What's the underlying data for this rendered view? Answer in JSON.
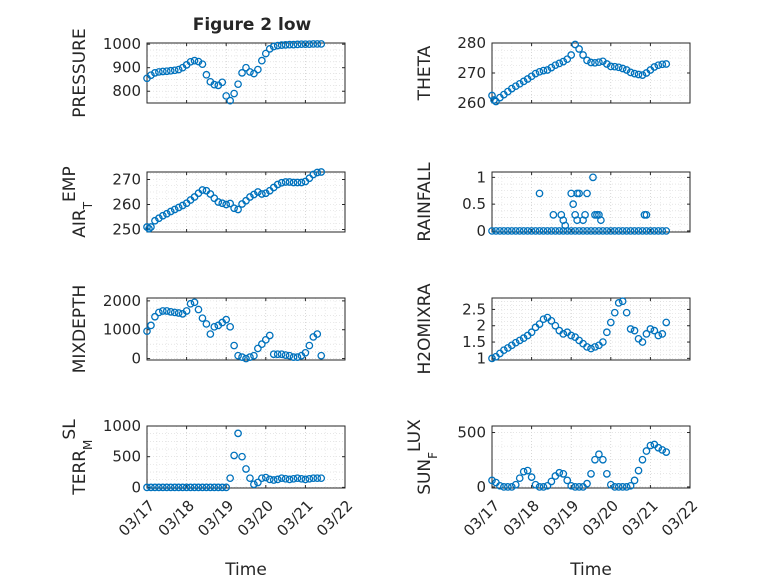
{
  "figure": {
    "title": "Figure 2 low"
  },
  "colors": {
    "marker": "#0072bd",
    "axis": "#262626",
    "grid": "#c8c8c8",
    "background": "#ffffff"
  },
  "chart_data": [
    {
      "type": "scatter",
      "title": "Figure 2 low",
      "xlabel": "",
      "ylabel": "PRESSURE",
      "ylabel_sub": "",
      "xlim": [
        0,
        5
      ],
      "ylim": [
        750,
        1005
      ],
      "yticks": [
        800,
        900,
        1000
      ],
      "ytick_labels": [
        "800",
        "900",
        "1000"
      ],
      "xticks": [],
      "grid": true,
      "x": [
        0.0,
        0.1,
        0.2,
        0.3,
        0.4,
        0.5,
        0.6,
        0.7,
        0.8,
        0.9,
        1.0,
        1.1,
        1.2,
        1.3,
        1.4,
        1.5,
        1.6,
        1.7,
        1.8,
        1.9,
        2.0,
        2.1,
        2.2,
        2.3,
        2.4,
        2.5,
        2.6,
        2.7,
        2.8,
        2.9,
        3.0,
        3.1,
        3.2,
        3.3,
        3.4,
        3.5,
        3.6,
        3.7,
        3.8,
        3.9,
        4.0,
        4.1,
        4.2,
        4.3,
        4.4
      ],
      "y": [
        855,
        868,
        878,
        882,
        884,
        885,
        887,
        889,
        892,
        900,
        912,
        925,
        930,
        926,
        915,
        870,
        840,
        828,
        825,
        838,
        780,
        760,
        790,
        830,
        878,
        900,
        882,
        875,
        892,
        930,
        960,
        980,
        990,
        994,
        996,
        997,
        998,
        998,
        999,
        1000,
        1000,
        1000,
        1001,
        1001,
        1001
      ]
    },
    {
      "type": "scatter",
      "title": "",
      "xlabel": "",
      "ylabel": "THETA",
      "ylabel_sub": "",
      "xlim": [
        0,
        5
      ],
      "ylim": [
        260,
        280
      ],
      "yticks": [
        260,
        270,
        280
      ],
      "ytick_labels": [
        "260",
        "270",
        "280"
      ],
      "xticks": [],
      "grid": true,
      "x": [
        0.0,
        0.05,
        0.1,
        0.2,
        0.3,
        0.4,
        0.5,
        0.6,
        0.7,
        0.8,
        0.9,
        1.0,
        1.1,
        1.2,
        1.3,
        1.4,
        1.5,
        1.6,
        1.7,
        1.8,
        1.9,
        2.0,
        2.1,
        2.2,
        2.3,
        2.4,
        2.5,
        2.6,
        2.7,
        2.8,
        2.9,
        3.0,
        3.1,
        3.2,
        3.3,
        3.4,
        3.5,
        3.6,
        3.7,
        3.8,
        3.9,
        4.0,
        4.1,
        4.2,
        4.3,
        4.4
      ],
      "y": [
        262.5,
        261.0,
        260.5,
        261.8,
        262.8,
        263.8,
        264.8,
        265.6,
        266.4,
        267.2,
        268.0,
        268.9,
        269.8,
        270.4,
        270.8,
        271.0,
        271.8,
        272.6,
        273.2,
        273.8,
        274.6,
        276.0,
        279.5,
        278.0,
        276.0,
        274.2,
        273.5,
        273.4,
        273.6,
        273.9,
        273.0,
        272.2,
        272.1,
        271.9,
        271.5,
        271.0,
        270.2,
        269.8,
        269.5,
        269.3,
        270.0,
        271.0,
        272.0,
        272.6,
        272.9,
        273.0
      ]
    },
    {
      "type": "scatter",
      "title": "",
      "xlabel": "",
      "ylabel": "AIR",
      "ylabel_sub": "T",
      "ylabel_tail": "EMP",
      "xlim": [
        0,
        5
      ],
      "ylim": [
        249,
        273
      ],
      "yticks": [
        250,
        260,
        270
      ],
      "ytick_labels": [
        "250",
        "260",
        "270"
      ],
      "xticks": [],
      "grid": true,
      "x": [
        0.0,
        0.05,
        0.1,
        0.2,
        0.3,
        0.4,
        0.5,
        0.6,
        0.7,
        0.8,
        0.9,
        1.0,
        1.1,
        1.2,
        1.3,
        1.4,
        1.5,
        1.6,
        1.7,
        1.8,
        1.9,
        2.0,
        2.1,
        2.2,
        2.3,
        2.4,
        2.5,
        2.6,
        2.7,
        2.8,
        2.9,
        3.0,
        3.1,
        3.2,
        3.3,
        3.4,
        3.5,
        3.6,
        3.7,
        3.8,
        3.9,
        4.0,
        4.1,
        4.2,
        4.3,
        4.4
      ],
      "y": [
        251.0,
        250.3,
        251.0,
        253.5,
        254.5,
        255.5,
        256.3,
        257.2,
        258.0,
        258.8,
        259.6,
        260.5,
        261.8,
        263.0,
        264.5,
        265.8,
        265.5,
        264.2,
        262.5,
        261.0,
        260.5,
        260.0,
        260.4,
        258.5,
        258.0,
        260.2,
        261.5,
        263.0,
        264.0,
        265.0,
        264.2,
        264.5,
        265.5,
        266.8,
        268.0,
        268.7,
        269.0,
        269.0,
        268.8,
        268.8,
        268.8,
        269.2,
        270.5,
        272.0,
        272.8,
        273.0
      ]
    },
    {
      "type": "scatter",
      "title": "",
      "xlabel": "",
      "ylabel": "RAINFALL",
      "ylabel_sub": "",
      "xlim": [
        0,
        5
      ],
      "ylim": [
        -0.02,
        1.1
      ],
      "yticks": [
        0,
        0.5,
        1
      ],
      "ytick_labels": [
        "0",
        "0.5",
        "1"
      ],
      "xticks": [],
      "grid": true,
      "x": [
        0.0,
        0.1,
        0.2,
        0.3,
        0.4,
        0.5,
        0.6,
        0.7,
        0.8,
        0.9,
        1.0,
        1.1,
        1.2,
        1.3,
        1.4,
        1.5,
        1.6,
        1.7,
        1.8,
        1.9,
        2.0,
        2.1,
        2.2,
        2.3,
        2.4,
        2.5,
        2.6,
        2.7,
        2.8,
        2.9,
        3.0,
        3.1,
        3.2,
        3.3,
        3.4,
        3.5,
        3.6,
        3.7,
        3.8,
        3.9,
        4.0,
        4.1,
        4.2,
        4.3,
        4.4,
        1.2,
        1.55,
        1.75,
        1.8,
        1.85,
        2.0,
        2.05,
        2.1,
        2.15,
        2.15,
        2.2,
        2.3,
        2.4,
        2.35,
        2.55,
        2.6,
        2.65,
        2.7,
        2.75,
        3.85,
        3.9
      ],
      "y": [
        0,
        0,
        0,
        0,
        0,
        0,
        0,
        0,
        0,
        0,
        0,
        0,
        0,
        0,
        0,
        0,
        0,
        0,
        0,
        0,
        0,
        0,
        0,
        0,
        0,
        0,
        0,
        0,
        0,
        0,
        0,
        0,
        0,
        0,
        0,
        0,
        0,
        0,
        0,
        0,
        0,
        0,
        0,
        0,
        0,
        0.7,
        0.3,
        0.3,
        0.2,
        0.1,
        0.7,
        0.5,
        0.3,
        0.7,
        0.2,
        0.7,
        0.2,
        0.7,
        0.3,
        1.0,
        0.3,
        0.3,
        0.3,
        0.2,
        0.3,
        0.3
      ]
    },
    {
      "type": "scatter",
      "title": "",
      "xlabel": "",
      "ylabel": "MIXDEPTH",
      "ylabel_sub": "",
      "xlim": [
        0,
        5
      ],
      "ylim": [
        -50,
        2100
      ],
      "yticks": [
        0,
        1000,
        2000
      ],
      "ytick_labels": [
        "0",
        "1000",
        "2000"
      ],
      "xticks": [],
      "grid": true,
      "x": [
        0.0,
        0.1,
        0.2,
        0.3,
        0.4,
        0.5,
        0.6,
        0.7,
        0.8,
        0.9,
        1.0,
        1.1,
        1.2,
        1.3,
        1.4,
        1.5,
        1.6,
        1.7,
        1.8,
        1.9,
        2.0,
        2.1,
        2.2,
        2.3,
        2.4,
        2.5,
        2.6,
        2.7,
        2.8,
        2.9,
        3.0,
        3.1,
        3.2,
        3.3,
        3.4,
        3.5,
        3.6,
        3.7,
        3.8,
        3.9,
        4.0,
        4.1,
        4.2,
        4.3,
        4.4
      ],
      "y": [
        950,
        1150,
        1450,
        1600,
        1650,
        1650,
        1620,
        1600,
        1580,
        1550,
        1650,
        1900,
        1950,
        1700,
        1400,
        1200,
        850,
        1100,
        1150,
        1250,
        1350,
        1100,
        450,
        100,
        50,
        0,
        50,
        100,
        350,
        500,
        650,
        800,
        150,
        150,
        150,
        120,
        100,
        50,
        50,
        100,
        200,
        450,
        750,
        850,
        100
      ]
    },
    {
      "type": "scatter",
      "title": "",
      "xlabel": "",
      "ylabel": "H2OMIXRA",
      "ylabel_sub": "",
      "xlim": [
        0,
        5
      ],
      "ylim": [
        0.95,
        2.85
      ],
      "yticks": [
        1,
        1.5,
        2,
        2.5
      ],
      "ytick_labels": [
        "1",
        "1.5",
        "2",
        "2.5"
      ],
      "xticks": [],
      "grid": true,
      "x": [
        0.0,
        0.1,
        0.2,
        0.3,
        0.4,
        0.5,
        0.6,
        0.7,
        0.8,
        0.9,
        1.0,
        1.1,
        1.2,
        1.3,
        1.4,
        1.5,
        1.6,
        1.7,
        1.8,
        1.9,
        2.0,
        2.1,
        2.2,
        2.3,
        2.4,
        2.5,
        2.6,
        2.7,
        2.8,
        2.9,
        3.0,
        3.1,
        3.2,
        3.3,
        3.4,
        3.5,
        3.6,
        3.7,
        3.8,
        3.9,
        4.0,
        4.1,
        4.2,
        4.3,
        4.4
      ],
      "y": [
        1.0,
        1.05,
        1.15,
        1.25,
        1.32,
        1.4,
        1.48,
        1.55,
        1.62,
        1.7,
        1.8,
        1.95,
        2.05,
        2.2,
        2.25,
        2.15,
        2.0,
        1.85,
        1.75,
        1.8,
        1.7,
        1.65,
        1.55,
        1.45,
        1.35,
        1.3,
        1.35,
        1.4,
        1.5,
        1.8,
        2.1,
        2.4,
        2.7,
        2.75,
        2.4,
        1.9,
        1.85,
        1.6,
        1.5,
        1.75,
        1.9,
        1.85,
        1.7,
        1.75,
        2.1
      ]
    },
    {
      "type": "scatter",
      "title": "",
      "xlabel": "Time",
      "ylabel": "TERR",
      "ylabel_sub": "M",
      "ylabel_tail": "SL",
      "xlim": [
        0,
        5
      ],
      "ylim": [
        -10,
        1000
      ],
      "yticks": [
        0,
        500,
        1000
      ],
      "ytick_labels": [
        "0",
        "500",
        "1000"
      ],
      "xticks": [
        0,
        1,
        2,
        3,
        4,
        5
      ],
      "xtick_labels": [
        "03/17",
        "03/18",
        "03/19",
        "03/20",
        "03/21",
        "03/22"
      ],
      "grid": true,
      "x": [
        0.0,
        0.1,
        0.2,
        0.3,
        0.4,
        0.5,
        0.6,
        0.7,
        0.8,
        0.9,
        1.0,
        1.1,
        1.2,
        1.3,
        1.4,
        1.5,
        1.6,
        1.7,
        1.8,
        1.9,
        2.0,
        2.1,
        2.2,
        2.3,
        2.4,
        2.5,
        2.6,
        2.7,
        2.8,
        2.9,
        3.0,
        3.1,
        3.2,
        3.3,
        3.4,
        3.5,
        3.6,
        3.7,
        3.8,
        3.9,
        4.0,
        4.1,
        4.2,
        4.3,
        4.4
      ],
      "y": [
        0,
        0,
        0,
        0,
        0,
        0,
        0,
        0,
        0,
        0,
        0,
        0,
        0,
        0,
        0,
        0,
        0,
        0,
        0,
        0,
        0,
        150,
        520,
        880,
        500,
        300,
        150,
        50,
        80,
        150,
        160,
        130,
        120,
        130,
        150,
        140,
        130,
        140,
        150,
        140,
        130,
        140,
        150,
        150,
        150
      ]
    },
    {
      "type": "scatter",
      "title": "",
      "xlabel": "Time",
      "ylabel": "SUN",
      "ylabel_sub": "F",
      "ylabel_tail": "LUX",
      "xlim": [
        0,
        5
      ],
      "ylim": [
        -10,
        560
      ],
      "yticks": [
        0,
        500
      ],
      "ytick_labels": [
        "0",
        "500"
      ],
      "xticks": [
        0,
        1,
        2,
        3,
        4,
        5
      ],
      "xtick_labels": [
        "03/17",
        "03/18",
        "03/19",
        "03/20",
        "03/21",
        "03/22"
      ],
      "grid": true,
      "x": [
        0.0,
        0.1,
        0.2,
        0.3,
        0.4,
        0.5,
        0.6,
        0.7,
        0.8,
        0.9,
        1.0,
        1.1,
        1.2,
        1.3,
        1.4,
        1.5,
        1.6,
        1.7,
        1.8,
        1.9,
        2.0,
        2.1,
        2.2,
        2.3,
        2.4,
        2.5,
        2.6,
        2.7,
        2.8,
        2.9,
        3.0,
        3.1,
        3.2,
        3.3,
        3.4,
        3.5,
        3.6,
        3.7,
        3.8,
        3.9,
        4.0,
        4.1,
        4.2,
        4.3,
        4.4
      ],
      "y": [
        60,
        40,
        10,
        0,
        0,
        0,
        20,
        80,
        140,
        150,
        90,
        20,
        0,
        0,
        10,
        50,
        100,
        130,
        120,
        60,
        10,
        0,
        0,
        0,
        30,
        120,
        250,
        300,
        250,
        120,
        20,
        0,
        0,
        0,
        0,
        10,
        60,
        150,
        250,
        330,
        380,
        390,
        360,
        340,
        320
      ]
    }
  ]
}
